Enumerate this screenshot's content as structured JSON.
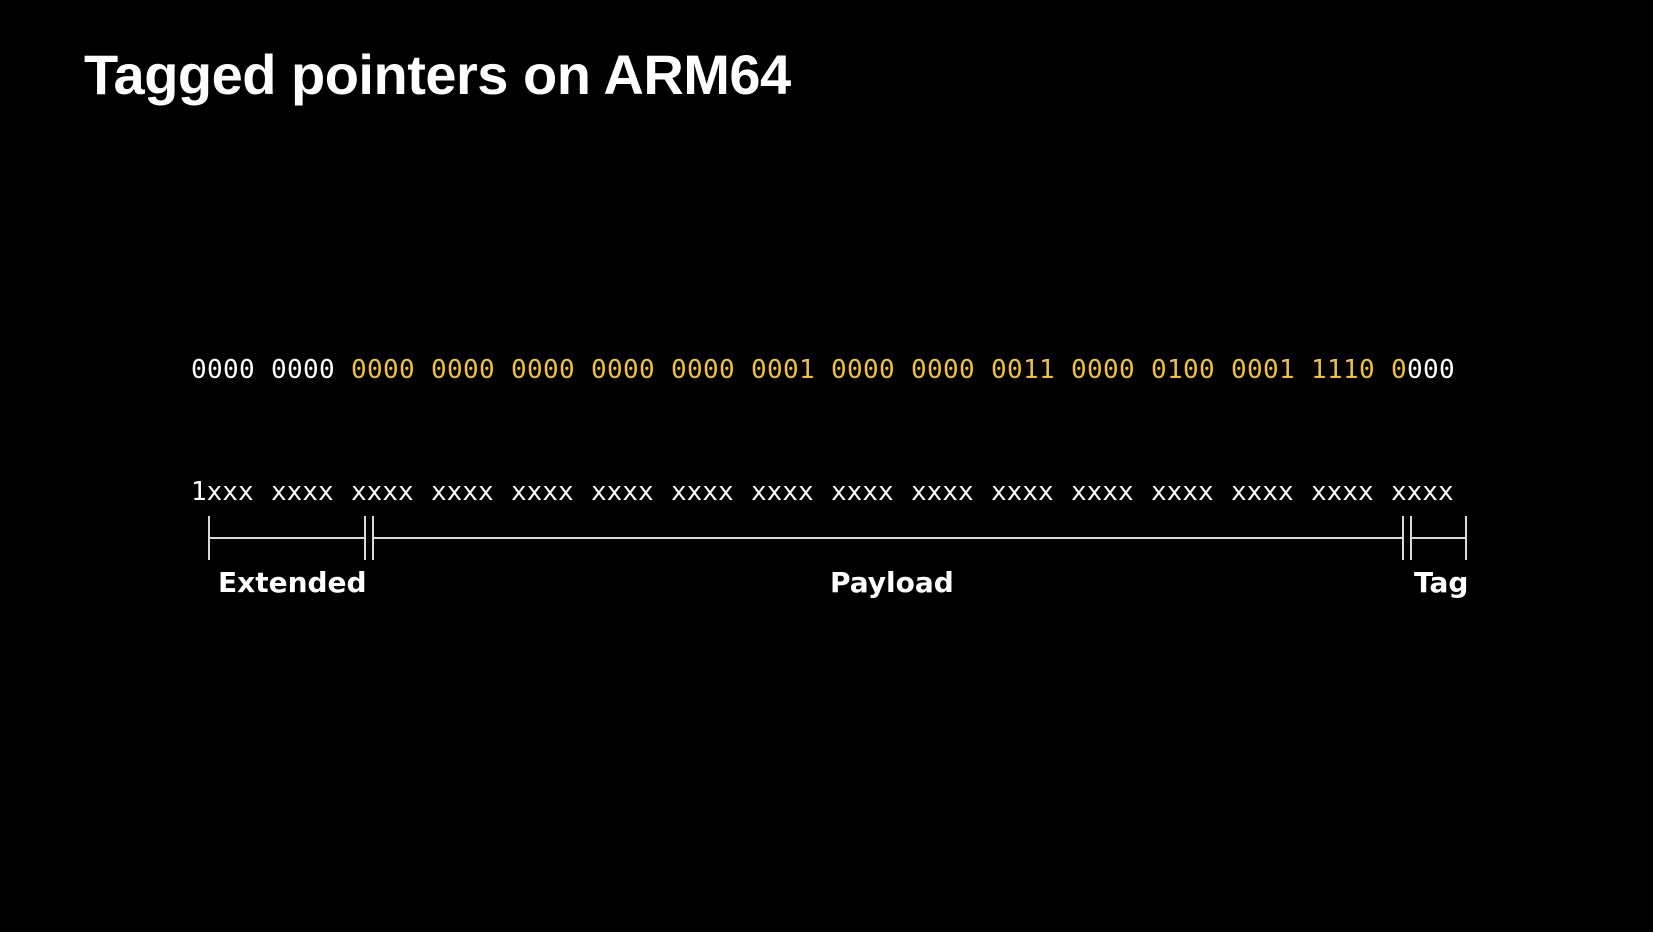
{
  "title": "Tagged pointers on ARM64",
  "colors": {
    "background": "#000000",
    "text": "#ffffff",
    "highlight": "#f0bd4a",
    "bracket": "#d9d9d9"
  },
  "value_row": [
    {
      "text": "0000",
      "colors": [
        "white",
        "white",
        "white",
        "white"
      ]
    },
    {
      "text": "0000",
      "colors": [
        "white",
        "white",
        "white",
        "white"
      ]
    },
    {
      "text": "0000",
      "colors": [
        "gold",
        "gold",
        "gold",
        "gold"
      ]
    },
    {
      "text": "0000",
      "colors": [
        "gold",
        "gold",
        "gold",
        "gold"
      ]
    },
    {
      "text": "0000",
      "colors": [
        "gold",
        "gold",
        "gold",
        "gold"
      ]
    },
    {
      "text": "0000",
      "colors": [
        "gold",
        "gold",
        "gold",
        "gold"
      ]
    },
    {
      "text": "0000",
      "colors": [
        "gold",
        "gold",
        "gold",
        "gold"
      ]
    },
    {
      "text": "0001",
      "colors": [
        "gold",
        "gold",
        "gold",
        "gold"
      ]
    },
    {
      "text": "0000",
      "colors": [
        "gold",
        "gold",
        "gold",
        "gold"
      ]
    },
    {
      "text": "0000",
      "colors": [
        "gold",
        "gold",
        "gold",
        "gold"
      ]
    },
    {
      "text": "0011",
      "colors": [
        "gold",
        "gold",
        "gold",
        "gold"
      ]
    },
    {
      "text": "0000",
      "colors": [
        "gold",
        "gold",
        "gold",
        "gold"
      ]
    },
    {
      "text": "0100",
      "colors": [
        "gold",
        "gold",
        "gold",
        "gold"
      ]
    },
    {
      "text": "0001",
      "colors": [
        "gold",
        "gold",
        "gold",
        "gold"
      ]
    },
    {
      "text": "1110",
      "colors": [
        "gold",
        "gold",
        "gold",
        "gold"
      ]
    },
    {
      "text": "0000",
      "colors": [
        "gold",
        "white",
        "white",
        "white"
      ]
    }
  ],
  "pattern_row": [
    "1xxx",
    "xxxx",
    "xxxx",
    "xxxx",
    "xxxx",
    "xxxx",
    "xxxx",
    "xxxx",
    "xxxx",
    "xxxx",
    "xxxx",
    "xxxx",
    "xxxx",
    "xxxx",
    "xxxx",
    "xxxx"
  ],
  "fields": {
    "extended": "Extended",
    "payload": "Payload",
    "tag": "Tag"
  }
}
